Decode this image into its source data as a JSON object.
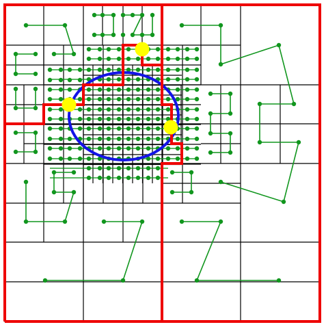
{
  "diagram": {
    "type": "quadtree-partition-with-space-filling-curve",
    "colors": {
      "background": "#ffffff",
      "grid": "#000000",
      "partition": "#ee0000",
      "curve": "#11961e",
      "circle": "#1414e6",
      "marker": "#ffff00"
    },
    "description_visible_text": ""
  }
}
